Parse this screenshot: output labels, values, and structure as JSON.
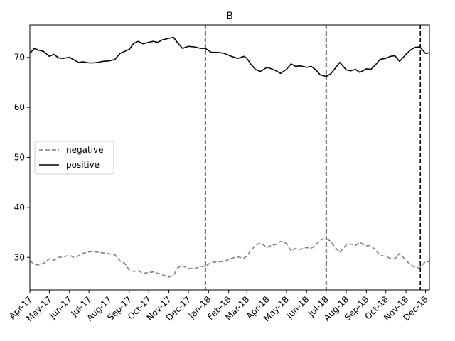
{
  "chart_data": {
    "type": "line",
    "title": "B",
    "xlabel": "",
    "ylabel": "",
    "x_range": [
      "2017-04-01",
      "2018-12-07"
    ],
    "ylim": [
      23.5,
      76.5
    ],
    "x_ticks": [
      {
        "date": "2017-04-01",
        "label": "Apr-17"
      },
      {
        "date": "2017-05-01",
        "label": "May-17"
      },
      {
        "date": "2017-06-01",
        "label": "Jun-17"
      },
      {
        "date": "2017-07-01",
        "label": "Jul-17"
      },
      {
        "date": "2017-08-01",
        "label": "Aug-17"
      },
      {
        "date": "2017-09-01",
        "label": "Sep-17"
      },
      {
        "date": "2017-10-01",
        "label": "Oct-17"
      },
      {
        "date": "2017-11-01",
        "label": "Nov-17"
      },
      {
        "date": "2017-12-01",
        "label": "Dec-17"
      },
      {
        "date": "2018-01-01",
        "label": "Jan-18"
      },
      {
        "date": "2018-02-01",
        "label": "Feb-18"
      },
      {
        "date": "2018-03-01",
        "label": "Mar-18"
      },
      {
        "date": "2018-04-01",
        "label": "Apr-18"
      },
      {
        "date": "2018-05-01",
        "label": "May-18"
      },
      {
        "date": "2018-06-01",
        "label": "Jun-18"
      },
      {
        "date": "2018-07-01",
        "label": "Jul-18"
      },
      {
        "date": "2018-08-01",
        "label": "Aug-18"
      },
      {
        "date": "2018-09-01",
        "label": "Sep-18"
      },
      {
        "date": "2018-10-01",
        "label": "Oct-18"
      },
      {
        "date": "2018-11-01",
        "label": "Nov-18"
      },
      {
        "date": "2018-12-01",
        "label": "Dec-18"
      }
    ],
    "y_ticks": [
      30,
      40,
      50,
      60,
      70
    ],
    "vertical_lines": [
      "2017-12-27",
      "2018-07-01",
      "2018-11-23"
    ],
    "legend_position": "center-left",
    "grid": false,
    "series": [
      {
        "name": "negative",
        "style": "dashed",
        "color": "#808080",
        "points": [
          [
            "2017-04-01",
            29.3
          ],
          [
            "2017-04-08",
            28.6
          ],
          [
            "2017-04-15",
            28.5
          ],
          [
            "2017-04-22",
            28.8
          ],
          [
            "2017-05-01",
            29.7
          ],
          [
            "2017-05-08",
            29.4
          ],
          [
            "2017-05-15",
            30.0
          ],
          [
            "2017-05-22",
            30.1
          ],
          [
            "2017-06-01",
            30.4
          ],
          [
            "2017-06-08",
            30.0
          ],
          [
            "2017-06-15",
            30.3
          ],
          [
            "2017-06-22",
            30.8
          ],
          [
            "2017-07-01",
            31.1
          ],
          [
            "2017-07-08",
            31.2
          ],
          [
            "2017-07-15",
            31.0
          ],
          [
            "2017-07-22",
            30.9
          ],
          [
            "2017-08-01",
            30.7
          ],
          [
            "2017-08-10",
            30.5
          ],
          [
            "2017-08-18",
            29.3
          ],
          [
            "2017-08-25",
            28.8
          ],
          [
            "2017-09-01",
            27.5
          ],
          [
            "2017-09-08",
            27.2
          ],
          [
            "2017-09-15",
            27.4
          ],
          [
            "2017-09-22",
            26.8
          ],
          [
            "2017-10-01",
            27.0
          ],
          [
            "2017-10-08",
            27.1
          ],
          [
            "2017-10-15",
            26.8
          ],
          [
            "2017-10-22",
            26.5
          ],
          [
            "2017-11-01",
            26.1
          ],
          [
            "2017-11-08",
            26.4
          ],
          [
            "2017-11-15",
            28.0
          ],
          [
            "2017-11-22",
            28.3
          ],
          [
            "2017-12-01",
            27.8
          ],
          [
            "2017-12-10",
            27.7
          ],
          [
            "2017-12-20",
            28.2
          ],
          [
            "2017-12-27",
            28.2
          ],
          [
            "2018-01-05",
            29.0
          ],
          [
            "2018-01-15",
            29.1
          ],
          [
            "2018-01-25",
            29.2
          ],
          [
            "2018-02-05",
            29.8
          ],
          [
            "2018-02-15",
            30.1
          ],
          [
            "2018-02-25",
            29.8
          ],
          [
            "2018-03-01",
            30.3
          ],
          [
            "2018-03-08",
            31.5
          ],
          [
            "2018-03-15",
            32.5
          ],
          [
            "2018-03-22",
            32.9
          ],
          [
            "2018-04-01",
            32.0
          ],
          [
            "2018-04-08",
            32.4
          ],
          [
            "2018-04-15",
            32.6
          ],
          [
            "2018-04-22",
            33.2
          ],
          [
            "2018-05-01",
            32.8
          ],
          [
            "2018-05-08",
            31.3
          ],
          [
            "2018-05-15",
            31.8
          ],
          [
            "2018-05-22",
            31.6
          ],
          [
            "2018-06-01",
            32.0
          ],
          [
            "2018-06-08",
            31.8
          ],
          [
            "2018-06-15",
            32.5
          ],
          [
            "2018-06-22",
            33.5
          ],
          [
            "2018-07-01",
            33.8
          ],
          [
            "2018-07-08",
            33.2
          ],
          [
            "2018-07-15",
            32.0
          ],
          [
            "2018-07-22",
            31.0
          ],
          [
            "2018-08-01",
            32.5
          ],
          [
            "2018-08-08",
            32.7
          ],
          [
            "2018-08-15",
            32.4
          ],
          [
            "2018-08-22",
            33.0
          ],
          [
            "2018-09-01",
            32.3
          ],
          [
            "2018-09-08",
            32.4
          ],
          [
            "2018-09-15",
            31.5
          ],
          [
            "2018-09-22",
            30.4
          ],
          [
            "2018-10-01",
            30.2
          ],
          [
            "2018-10-08",
            29.8
          ],
          [
            "2018-10-15",
            29.7
          ],
          [
            "2018-10-22",
            30.8
          ],
          [
            "2018-11-01",
            29.4
          ],
          [
            "2018-11-08",
            28.5
          ],
          [
            "2018-11-15",
            28.0
          ],
          [
            "2018-11-22",
            27.9
          ],
          [
            "2018-12-01",
            29.2
          ],
          [
            "2018-12-07",
            29.1
          ]
        ]
      },
      {
        "name": "positive",
        "style": "solid",
        "color": "#000000",
        "points": [
          [
            "2017-04-01",
            70.8
          ],
          [
            "2017-04-08",
            71.8
          ],
          [
            "2017-04-15",
            71.4
          ],
          [
            "2017-04-22",
            71.2
          ],
          [
            "2017-05-01",
            70.2
          ],
          [
            "2017-05-08",
            70.6
          ],
          [
            "2017-05-15",
            69.9
          ],
          [
            "2017-05-22",
            69.8
          ],
          [
            "2017-06-01",
            70.0
          ],
          [
            "2017-06-08",
            69.5
          ],
          [
            "2017-06-15",
            69.0
          ],
          [
            "2017-06-22",
            69.1
          ],
          [
            "2017-07-01",
            68.9
          ],
          [
            "2017-07-08",
            68.9
          ],
          [
            "2017-07-15",
            69.0
          ],
          [
            "2017-07-22",
            69.2
          ],
          [
            "2017-08-01",
            69.3
          ],
          [
            "2017-08-10",
            69.6
          ],
          [
            "2017-08-18",
            70.8
          ],
          [
            "2017-08-25",
            71.2
          ],
          [
            "2017-09-01",
            71.6
          ],
          [
            "2017-09-08",
            72.8
          ],
          [
            "2017-09-15",
            73.2
          ],
          [
            "2017-09-22",
            72.7
          ],
          [
            "2017-10-01",
            73.0
          ],
          [
            "2017-10-08",
            73.2
          ],
          [
            "2017-10-15",
            73.0
          ],
          [
            "2017-10-22",
            73.5
          ],
          [
            "2017-11-01",
            73.8
          ],
          [
            "2017-11-08",
            74.0
          ],
          [
            "2017-11-15",
            72.8
          ],
          [
            "2017-11-22",
            71.8
          ],
          [
            "2017-12-01",
            72.2
          ],
          [
            "2017-12-10",
            72.1
          ],
          [
            "2017-12-20",
            71.8
          ],
          [
            "2017-12-27",
            71.8
          ],
          [
            "2018-01-05",
            71.0
          ],
          [
            "2018-01-15",
            71.0
          ],
          [
            "2018-01-25",
            70.8
          ],
          [
            "2018-02-05",
            70.2
          ],
          [
            "2018-02-15",
            69.8
          ],
          [
            "2018-02-25",
            70.2
          ],
          [
            "2018-03-01",
            69.8
          ],
          [
            "2018-03-08",
            68.5
          ],
          [
            "2018-03-15",
            67.5
          ],
          [
            "2018-03-22",
            67.2
          ],
          [
            "2018-04-01",
            68.0
          ],
          [
            "2018-04-08",
            67.7
          ],
          [
            "2018-04-15",
            67.3
          ],
          [
            "2018-04-22",
            66.8
          ],
          [
            "2018-05-01",
            67.6
          ],
          [
            "2018-05-08",
            68.7
          ],
          [
            "2018-05-15",
            68.2
          ],
          [
            "2018-05-22",
            68.3
          ],
          [
            "2018-06-01",
            68.0
          ],
          [
            "2018-06-08",
            68.2
          ],
          [
            "2018-06-15",
            67.5
          ],
          [
            "2018-06-22",
            66.5
          ],
          [
            "2018-07-01",
            66.2
          ],
          [
            "2018-07-08",
            66.7
          ],
          [
            "2018-07-15",
            67.8
          ],
          [
            "2018-07-22",
            69.0
          ],
          [
            "2018-08-01",
            67.5
          ],
          [
            "2018-08-08",
            67.3
          ],
          [
            "2018-08-15",
            67.6
          ],
          [
            "2018-08-22",
            67.0
          ],
          [
            "2018-09-01",
            67.7
          ],
          [
            "2018-09-08",
            67.6
          ],
          [
            "2018-09-15",
            68.5
          ],
          [
            "2018-09-22",
            69.6
          ],
          [
            "2018-10-01",
            69.8
          ],
          [
            "2018-10-08",
            70.2
          ],
          [
            "2018-10-15",
            70.3
          ],
          [
            "2018-10-22",
            69.2
          ],
          [
            "2018-11-01",
            70.6
          ],
          [
            "2018-11-08",
            71.5
          ],
          [
            "2018-11-15",
            72.0
          ],
          [
            "2018-11-22",
            72.1
          ],
          [
            "2018-12-01",
            70.8
          ],
          [
            "2018-12-07",
            70.9
          ]
        ]
      }
    ]
  }
}
